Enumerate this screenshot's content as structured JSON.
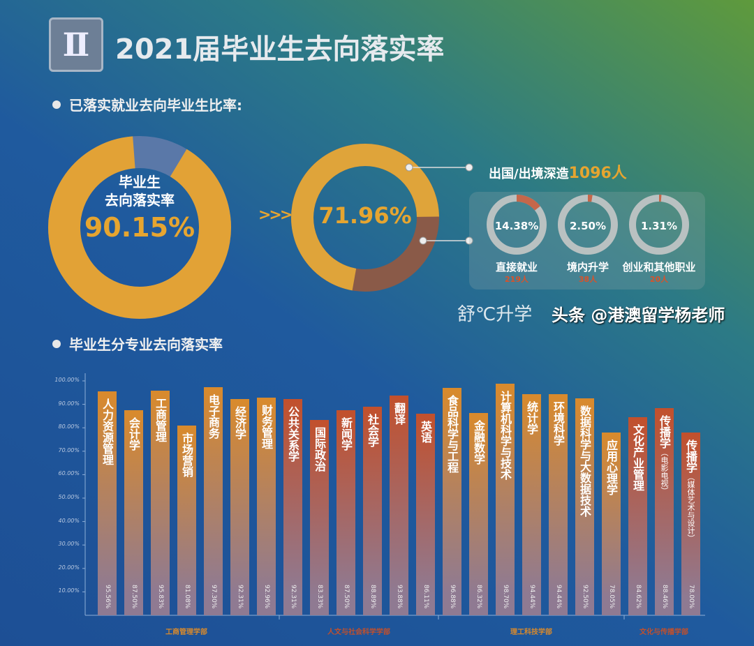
{
  "header": {
    "badge": "Ⅱ",
    "title": "2021届毕业生去向落实率"
  },
  "section1": {
    "heading": "已落实就业去向毕业生比率:"
  },
  "donut_main": {
    "label": "毕业生\n去向落实率",
    "value": "90.15%",
    "percent": 90.15,
    "color_main": "#e2a236",
    "color_rest": "#5a78a8"
  },
  "arrows": ">>>",
  "donut_second": {
    "value": "71.96%",
    "percent": 71.96,
    "color_main": "#dfa43a",
    "color_rest": "#8a5a48"
  },
  "abroad": {
    "label": "出国/出境深造",
    "count": "1096人"
  },
  "minis": [
    {
      "pct": "14.38%",
      "percent": 14.38,
      "label": "直接就业",
      "count": "219人"
    },
    {
      "pct": "2.50%",
      "percent": 2.5,
      "label": "境内升学",
      "count": "38人"
    },
    {
      "pct": "1.31%",
      "percent": 1.31,
      "label": "创业和其他职业",
      "count": "20人"
    }
  ],
  "section2": {
    "heading": "毕业生分专业去向落实率"
  },
  "chart_data": {
    "type": "bar",
    "ylim": [
      0,
      100
    ],
    "yticks": [
      "10.00%",
      "20.00%",
      "30.00%",
      "40.00%",
      "50.00%",
      "60.00%",
      "70.00%",
      "80.00%",
      "90.00%",
      "100.00%"
    ],
    "categories": [
      "人力资源管理",
      "会计学",
      "工商管理",
      "市场营销",
      "电子商务",
      "经济学",
      "财务管理",
      "公共关系学",
      "国际政治",
      "新闻学",
      "社会学",
      "翻译",
      "英语",
      "食品科学与工程",
      "金融数学",
      "计算机科学与技术",
      "统计学",
      "环境科学",
      "数据科学与大数据技术",
      "应用心理学",
      "文化产业管理",
      "传播学",
      "传播学"
    ],
    "subnotes": [
      "",
      "",
      "",
      "",
      "",
      "",
      "",
      "",
      "",
      "",
      "",
      "",
      "",
      "",
      "",
      "",
      "",
      "",
      "",
      "",
      "",
      "（电影电视）",
      "（媒体艺术与设计）"
    ],
    "values": [
      95.56,
      87.5,
      95.83,
      81.08,
      97.3,
      92.31,
      92.96,
      92.31,
      83.33,
      87.5,
      88.89,
      93.88,
      86.11,
      96.88,
      86.32,
      98.7,
      94.44,
      94.44,
      92.5,
      78.05,
      84.62,
      88.46,
      78.0
    ],
    "value_labels": [
      "95.56%",
      "87.50%",
      "95.83%",
      "81.08%",
      "97.30%",
      "92.31%",
      "92.96%",
      "92.31%",
      "83.33%",
      "87.50%",
      "88.89%",
      "93.88%",
      "86.11%",
      "96.88%",
      "86.32%",
      "98.70%",
      "94.44%",
      "94.44%",
      "92.50%",
      "78.05%",
      "84.62%",
      "88.46%",
      "78.00%"
    ],
    "groups": [
      {
        "name": "工商管理学部",
        "start": 0,
        "end": 6,
        "color": "#d98a2c"
      },
      {
        "name": "人文与社会科学学部",
        "start": 7,
        "end": 12,
        "color": "#c2502c"
      },
      {
        "name": "理工科技学部",
        "start": 13,
        "end": 19,
        "color": "#d98a2c"
      },
      {
        "name": "文化与传播学部",
        "start": 20,
        "end": 22,
        "color": "#c2502c"
      }
    ]
  },
  "watermark": {
    "text": "头条 @港澳留学杨老师",
    "overlay": "舒℃升学"
  }
}
